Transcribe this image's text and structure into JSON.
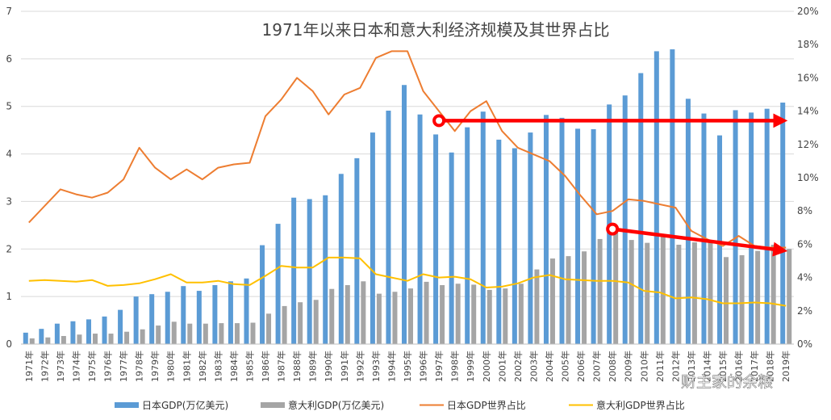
{
  "chart_data": {
    "type": "bar+line",
    "title": "1971年以来日本和意大利经济规模及其世界占比",
    "categories": [
      "1971年",
      "1972年",
      "1973年",
      "1974年",
      "1975年",
      "1976年",
      "1977年",
      "1978年",
      "1979年",
      "1980年",
      "1981年",
      "1982年",
      "1983年",
      "1984年",
      "1985年",
      "1986年",
      "1987年",
      "1988年",
      "1989年",
      "1990年",
      "1991年",
      "1992年",
      "1993年",
      "1994年",
      "1995年",
      "1996年",
      "1997年",
      "1998年",
      "1999年",
      "2000年",
      "2001年",
      "2002年",
      "2003年",
      "2004年",
      "2005年",
      "2006年",
      "2007年",
      "2008年",
      "2009年",
      "2010年",
      "2011年",
      "2012年",
      "2013年",
      "2014年",
      "2015年",
      "2016年",
      "2017年",
      "2018年",
      "2019年"
    ],
    "y_left": {
      "min": 0,
      "max": 7,
      "ticks": [
        "0",
        "1",
        "2",
        "3",
        "4",
        "5",
        "6",
        "7"
      ]
    },
    "y_right": {
      "min": 0,
      "max": 20,
      "ticks": [
        "0%",
        "2%",
        "4%",
        "6%",
        "8%",
        "10%",
        "12%",
        "14%",
        "16%",
        "18%",
        "20%"
      ]
    },
    "series": [
      {
        "name": "日本GDP(万亿美元)",
        "type": "bar",
        "axis": "left",
        "color": "#5b9bd5",
        "values": [
          0.24,
          0.32,
          0.43,
          0.48,
          0.52,
          0.58,
          0.72,
          1.0,
          1.05,
          1.1,
          1.22,
          1.12,
          1.24,
          1.32,
          1.38,
          2.08,
          2.53,
          3.08,
          3.05,
          3.13,
          3.58,
          3.91,
          4.45,
          4.91,
          5.45,
          4.83,
          4.41,
          4.03,
          4.56,
          4.89,
          4.3,
          4.12,
          4.45,
          4.82,
          4.76,
          4.53,
          4.52,
          5.04,
          5.23,
          5.7,
          6.16,
          6.2,
          5.16,
          4.85,
          4.39,
          4.92,
          4.87,
          4.95,
          5.08
        ]
      },
      {
        "name": "意大利GDP(万亿美元)",
        "type": "bar",
        "axis": "left",
        "color": "#a5a5a5",
        "values": [
          0.12,
          0.14,
          0.17,
          0.2,
          0.22,
          0.22,
          0.26,
          0.31,
          0.39,
          0.47,
          0.43,
          0.43,
          0.44,
          0.44,
          0.45,
          0.64,
          0.8,
          0.88,
          0.93,
          1.16,
          1.24,
          1.32,
          1.06,
          1.1,
          1.17,
          1.31,
          1.24,
          1.27,
          1.25,
          1.14,
          1.17,
          1.27,
          1.57,
          1.8,
          1.85,
          1.95,
          2.21,
          2.39,
          2.19,
          2.13,
          2.29,
          2.09,
          2.14,
          2.15,
          1.83,
          1.87,
          1.96,
          2.09,
          2.0
        ]
      },
      {
        "name": "日本GDP世界占比",
        "type": "line",
        "axis": "right",
        "color": "#ed7d31",
        "values": [
          7.3,
          8.3,
          9.3,
          9.0,
          8.8,
          9.1,
          9.9,
          11.8,
          10.6,
          9.9,
          10.5,
          9.9,
          10.6,
          10.8,
          10.9,
          13.7,
          14.7,
          16.0,
          15.2,
          13.8,
          15.0,
          15.4,
          17.2,
          17.6,
          17.6,
          15.2,
          14.0,
          12.8,
          14.0,
          14.6,
          12.8,
          11.8,
          11.4,
          11.0,
          10.1,
          8.9,
          7.8,
          8.0,
          8.7,
          8.6,
          8.4,
          8.2,
          6.8,
          6.3,
          5.9,
          6.5,
          5.9,
          5.8,
          5.8
        ]
      },
      {
        "name": "意大利GDP世界占比",
        "type": "line",
        "axis": "right",
        "color": "#ffc000",
        "values": [
          3.8,
          3.85,
          3.8,
          3.75,
          3.85,
          3.5,
          3.55,
          3.65,
          3.9,
          4.2,
          3.7,
          3.7,
          3.8,
          3.6,
          3.55,
          4.1,
          4.7,
          4.6,
          4.6,
          5.2,
          5.2,
          5.15,
          4.2,
          4.0,
          3.8,
          4.2,
          4.0,
          4.05,
          3.9,
          3.4,
          3.45,
          3.65,
          4.0,
          4.15,
          3.9,
          3.85,
          3.8,
          3.8,
          3.7,
          3.2,
          3.1,
          2.75,
          2.8,
          2.7,
          2.45,
          2.45,
          2.5,
          2.45,
          2.3
        ]
      }
    ],
    "annotations": [
      {
        "type": "arrow",
        "color": "#ff0000",
        "from": {
          "category": "1997年",
          "value_left": 4.7
        },
        "to": {
          "category": "2019年",
          "value_left": 4.7
        }
      },
      {
        "type": "arrow",
        "color": "#ff0000",
        "from": {
          "category": "2008年",
          "value_left": 2.42
        },
        "to": {
          "category": "2019年",
          "value_left": 1.97
        }
      }
    ],
    "legend": "bottom",
    "grid": true
  },
  "watermark": "财主家的余粮"
}
